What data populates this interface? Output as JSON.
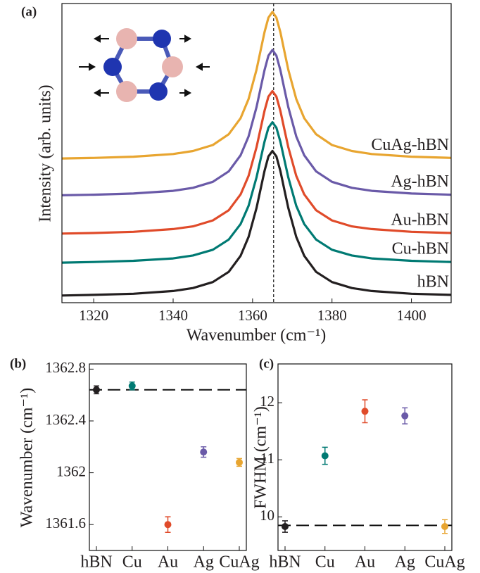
{
  "chart_data": [
    {
      "type": "line",
      "panel_label": "(a)",
      "xlabel": "Wavenumber (cm⁻¹)",
      "ylabel": "Intensity (arb. units)",
      "xlim": [
        1312,
        1410
      ],
      "xticks": [
        1320,
        1340,
        1360,
        1380,
        1400
      ],
      "ylim": [
        0,
        100
      ],
      "vline": 1365.3,
      "x": [
        1312,
        1320,
        1330,
        1340,
        1345,
        1350,
        1354,
        1357,
        1359,
        1361,
        1362,
        1363,
        1364,
        1365,
        1366,
        1367,
        1368,
        1369,
        1371,
        1373,
        1376,
        1380,
        1385,
        1390,
        1400,
        1410
      ],
      "series": [
        {
          "name": "hBN",
          "color": "#231f20",
          "values": [
            2.4,
            2.6,
            3.0,
            3.9,
            4.9,
            6.9,
            10.3,
            15.7,
            22.0,
            31.7,
            37.8,
            44.0,
            48.9,
            50.7,
            48.9,
            44.0,
            37.8,
            31.7,
            22.0,
            15.7,
            10.3,
            6.9,
            4.9,
            3.9,
            3.0,
            2.6
          ]
        },
        {
          "name": "Cu-hBN",
          "color": "#007a73",
          "values": [
            13.4,
            13.6,
            14.0,
            14.8,
            15.8,
            17.7,
            21.1,
            26.3,
            32.4,
            41.9,
            47.8,
            53.8,
            58.5,
            60.3,
            58.5,
            53.8,
            47.8,
            41.9,
            32.4,
            26.3,
            21.1,
            17.7,
            15.8,
            14.8,
            14.0,
            13.6
          ]
        },
        {
          "name": "Au-hBN",
          "color": "#e04b2a",
          "values": [
            23.1,
            23.3,
            23.7,
            24.6,
            25.5,
            27.5,
            30.9,
            36.2,
            42.4,
            52.0,
            58.0,
            64.1,
            68.9,
            70.7,
            68.9,
            64.1,
            58.0,
            52.0,
            42.4,
            36.2,
            30.9,
            27.5,
            25.5,
            24.6,
            23.7,
            23.3
          ]
        },
        {
          "name": "Ag-hBN",
          "color": "#6a5aa8",
          "values": [
            35.9,
            36.1,
            36.5,
            37.4,
            38.4,
            40.4,
            43.9,
            49.3,
            55.6,
            65.4,
            71.5,
            77.7,
            82.6,
            84.5,
            82.6,
            77.7,
            71.5,
            65.4,
            55.6,
            49.3,
            43.9,
            40.4,
            38.4,
            37.4,
            36.5,
            36.1
          ]
        },
        {
          "name": "CuAg-hBN",
          "color": "#e8a530",
          "values": [
            48.2,
            48.4,
            48.8,
            49.7,
            50.7,
            52.7,
            56.3,
            61.7,
            68.1,
            77.9,
            84.1,
            90.4,
            95.3,
            97.2,
            95.3,
            90.4,
            84.1,
            77.9,
            68.1,
            61.7,
            56.3,
            52.7,
            50.7,
            49.7,
            48.8,
            48.4
          ]
        }
      ]
    },
    {
      "type": "scatter",
      "panel_label": "(b)",
      "ylabel": "Wavenumber (cm⁻¹)",
      "categories": [
        "hBN",
        "Cu",
        "Au",
        "Ag",
        "CuAg"
      ],
      "values": [
        1362.64,
        1362.67,
        1361.6,
        1362.16,
        1362.08
      ],
      "errors": [
        0.03,
        0.03,
        0.06,
        0.04,
        0.03
      ],
      "colors": [
        "#231f20",
        "#007a73",
        "#e04b2a",
        "#6a5aa8",
        "#e8a530"
      ],
      "ylim": [
        1361.4,
        1362.84
      ],
      "yticks": [
        1361.6,
        1362,
        1362.4,
        1362.8
      ],
      "hline": 1362.64
    },
    {
      "type": "scatter",
      "panel_label": "(c)",
      "ylabel": "FWHM (cm⁻¹)",
      "categories": [
        "hBN",
        "Cu",
        "Au",
        "Ag",
        "CuAg"
      ],
      "values": [
        9.83,
        11.07,
        11.85,
        11.77,
        9.83
      ],
      "errors": [
        0.1,
        0.15,
        0.2,
        0.14,
        0.12
      ],
      "colors": [
        "#231f20",
        "#007a73",
        "#e04b2a",
        "#6a5aa8",
        "#e8a530"
      ],
      "ylim": [
        9.41,
        12.68
      ],
      "yticks": [
        10,
        11,
        12
      ],
      "hline": 9.85
    }
  ]
}
